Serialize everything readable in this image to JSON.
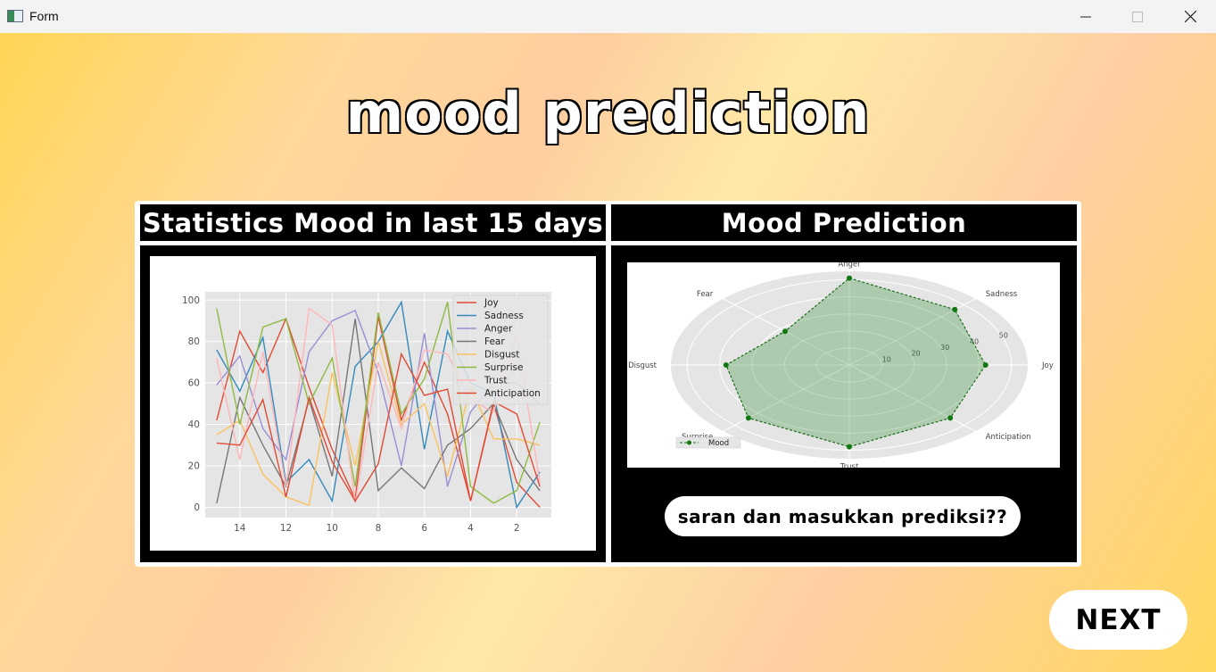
{
  "window": {
    "title": "Form"
  },
  "app": {
    "title": "mood prediction"
  },
  "left_panel": {
    "title": "Statistics Mood in last 15 days"
  },
  "right_panel": {
    "title": "Mood Prediction"
  },
  "buttons": {
    "suggest": "saran dan masukkan prediksi??",
    "next": "NEXT"
  },
  "chart_data": [
    {
      "type": "line",
      "title": "",
      "xlabel": "",
      "ylabel": "",
      "x": [
        15,
        14,
        13,
        12,
        11,
        10,
        9,
        8,
        7,
        6,
        5,
        4,
        3,
        2,
        1
      ],
      "xlim": [
        15.5,
        0.5
      ],
      "ylim": [
        -5,
        104
      ],
      "xticks": [
        14,
        12,
        10,
        8,
        6,
        4,
        2
      ],
      "yticks": [
        0,
        20,
        40,
        60,
        80,
        100
      ],
      "legend_position": "top-right",
      "series": [
        {
          "name": "Joy",
          "color": "#e24a33",
          "values": [
            42,
            85,
            65,
            91,
            58,
            28,
            4,
            92,
            42,
            70,
            45,
            3,
            50,
            12,
            0
          ]
        },
        {
          "name": "Sadness",
          "color": "#348abd",
          "values": [
            76,
            56,
            82,
            12,
            23,
            3,
            68,
            80,
            99,
            28,
            85,
            60,
            55,
            0,
            17
          ]
        },
        {
          "name": "Anger",
          "color": "#988ed5",
          "values": [
            59,
            73,
            38,
            23,
            75,
            90,
            95,
            65,
            20,
            84,
            10,
            46,
            60,
            60,
            50
          ]
        },
        {
          "name": "Fear",
          "color": "#777777",
          "values": [
            2,
            53,
            30,
            10,
            52,
            15,
            91,
            8,
            19,
            9,
            30,
            38,
            50,
            23,
            8
          ]
        },
        {
          "name": "Disgust",
          "color": "#fbc15e",
          "values": [
            35,
            42,
            16,
            5,
            1,
            65,
            20,
            80,
            40,
            50,
            15,
            58,
            33,
            33,
            30
          ]
        },
        {
          "name": "Surprise",
          "color": "#8eba42",
          "values": [
            96,
            40,
            87,
            91,
            50,
            72,
            10,
            94,
            45,
            62,
            99,
            10,
            2,
            8,
            41
          ]
        },
        {
          "name": "Trust",
          "color": "#ffb5b8",
          "values": [
            72,
            23,
            75,
            10,
            96,
            88,
            2,
            70,
            38,
            76,
            74,
            52,
            46,
            83,
            12
          ]
        },
        {
          "name": "Anticipation",
          "color": "#e24a33",
          "values": [
            31,
            30,
            52,
            5,
            53,
            22,
            3,
            21,
            74,
            54,
            57,
            3,
            51,
            45,
            10
          ]
        }
      ]
    },
    {
      "type": "radar",
      "title": "",
      "categories": [
        "Anger",
        "Sadness",
        "Joy",
        "Anticipation",
        "Trust",
        "Surprise",
        "Disgust",
        "Fear"
      ],
      "rlim": [
        0,
        55
      ],
      "rticks": [
        10,
        20,
        30,
        40,
        50
      ],
      "legend_position": "bottom-left",
      "series": [
        {
          "name": "Mood",
          "color": "#2d8a2d",
          "values": [
            51,
            46,
            42,
            44,
            48,
            44,
            38,
            28
          ]
        }
      ]
    }
  ]
}
